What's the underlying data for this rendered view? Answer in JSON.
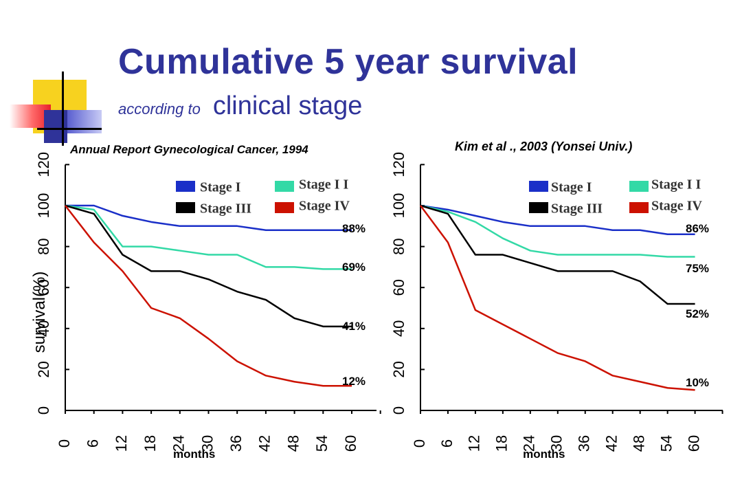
{
  "title": {
    "main": "Cumulative 5 year survival",
    "sub_small": "according to",
    "sub_big": "clinical stage"
  },
  "y_axis_label": "survival(%)",
  "colors": {
    "title": "#2f3399",
    "stage_1": "#1a2fc8",
    "stage_2": "#33d9a6",
    "stage_3": "#000000",
    "stage_4": "#cc1100"
  },
  "legend": [
    {
      "label": "Stage I",
      "color": "#1a2fc8"
    },
    {
      "label": "Stage I I",
      "color": "#33d9a6"
    },
    {
      "label": "Stage III",
      "color": "#000000"
    },
    {
      "label": "Stage IV",
      "color": "#cc1100"
    }
  ],
  "chart_data": [
    {
      "type": "line",
      "title": "Annual Report Gynecological Cancer, 1994",
      "xlabel": "months",
      "ylabel": "survival(%)",
      "x": [
        0,
        6,
        12,
        18,
        24,
        30,
        36,
        42,
        48,
        54,
        60
      ],
      "xlim": [
        0,
        66
      ],
      "ylim": [
        0,
        120
      ],
      "yticks": [
        0,
        20,
        40,
        60,
        80,
        100,
        120
      ],
      "grid": false,
      "legend_position": "top-right",
      "series": [
        {
          "name": "Stage I",
          "color": "#1a2fc8",
          "values": [
            100,
            100,
            95,
            92,
            90,
            90,
            90,
            88,
            88,
            88,
            88
          ],
          "end_label": "88%"
        },
        {
          "name": "Stage I I",
          "color": "#33d9a6",
          "values": [
            100,
            98,
            80,
            80,
            78,
            76,
            76,
            70,
            70,
            69,
            69
          ],
          "end_label": "69%"
        },
        {
          "name": "Stage III",
          "color": "#000000",
          "values": [
            100,
            96,
            76,
            68,
            68,
            64,
            58,
            54,
            45,
            41,
            41
          ],
          "end_label": "41%"
        },
        {
          "name": "Stage IV",
          "color": "#cc1100",
          "values": [
            100,
            82,
            68,
            50,
            45,
            35,
            24,
            17,
            14,
            12,
            12
          ],
          "end_label": "12%"
        }
      ]
    },
    {
      "type": "line",
      "title": "Kim et al ., 2003  (Yonsei Univ.)",
      "xlabel": "months",
      "ylabel": "",
      "x": [
        0,
        6,
        12,
        18,
        24,
        30,
        36,
        42,
        48,
        54,
        60
      ],
      "xlim": [
        0,
        66
      ],
      "ylim": [
        0,
        120
      ],
      "yticks": [
        0,
        20,
        40,
        60,
        80,
        100,
        120
      ],
      "grid": false,
      "legend_position": "top-right",
      "series": [
        {
          "name": "Stage I",
          "color": "#1a2fc8",
          "values": [
            100,
            98,
            95,
            92,
            90,
            90,
            90,
            88,
            88,
            86,
            86
          ],
          "end_label": "86%"
        },
        {
          "name": "Stage I I",
          "color": "#33d9a6",
          "values": [
            100,
            97,
            92,
            84,
            78,
            76,
            76,
            76,
            76,
            75,
            75
          ],
          "end_label": "75%"
        },
        {
          "name": "Stage III",
          "color": "#000000",
          "values": [
            100,
            96,
            76,
            76,
            72,
            68,
            68,
            68,
            63,
            52,
            52
          ],
          "end_label": "52%"
        },
        {
          "name": "Stage IV",
          "color": "#cc1100",
          "values": [
            100,
            82,
            49,
            42,
            35,
            28,
            24,
            17,
            14,
            11,
            10
          ],
          "end_label": "10%"
        }
      ]
    }
  ]
}
